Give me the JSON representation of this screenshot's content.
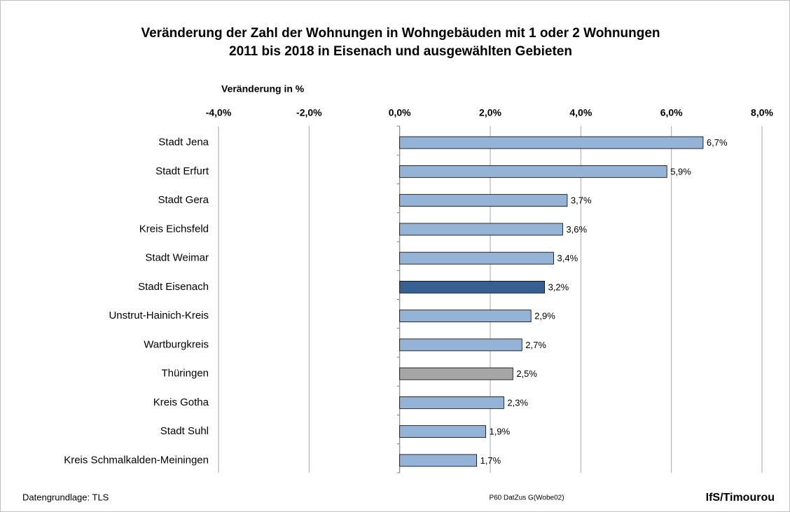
{
  "chart_data": {
    "type": "barh",
    "title": [
      "Veränderung der Zahl der Wohnungen in Wohngebäuden mit 1 oder 2 Wohnungen",
      "2011 bis 2018 in Eisenach und ausgewählten Gebieten"
    ],
    "x_label": "Veränderung in %",
    "categories": [
      "Stadt Jena",
      "Stadt Erfurt",
      "Stadt Gera",
      "Kreis Eichsfeld",
      "Stadt Weimar",
      "Stadt Eisenach",
      "Unstrut-Hainich-Kreis",
      "Wartburgkreis",
      "Thüringen",
      "Kreis Gotha",
      "Stadt Suhl",
      "Kreis Schmalkalden-Meiningen"
    ],
    "values": [
      6.7,
      5.9,
      3.7,
      3.6,
      3.4,
      3.2,
      2.9,
      2.7,
      2.5,
      2.3,
      1.9,
      1.7
    ],
    "value_labels": [
      "6,7%",
      "5,9%",
      "3,7%",
      "3,6%",
      "3,4%",
      "3,2%",
      "2,9%",
      "2,7%",
      "2,5%",
      "2,3%",
      "1,9%",
      "1,7%"
    ],
    "colors": [
      "#95b3d7",
      "#95b3d7",
      "#95b3d7",
      "#95b3d7",
      "#95b3d7",
      "#366092",
      "#95b3d7",
      "#95b3d7",
      "#a6a6a6",
      "#95b3d7",
      "#95b3d7",
      "#95b3d7"
    ],
    "xlim": [
      -4,
      8
    ],
    "xticks": [
      {
        "value": -4,
        "label": "-4,0%"
      },
      {
        "value": -2,
        "label": "-2,0%"
      },
      {
        "value": 0,
        "label": "0,0%"
      },
      {
        "value": 2,
        "label": "2,0%"
      },
      {
        "value": 4,
        "label": "4,0%"
      },
      {
        "value": 6,
        "label": "6,0%"
      },
      {
        "value": 8,
        "label": "8,0%"
      }
    ],
    "grid": true,
    "source": "Datengrundlage: TLS",
    "code": "P60 DatZus G(Wobe02)",
    "author": "IfS/Timourou"
  }
}
